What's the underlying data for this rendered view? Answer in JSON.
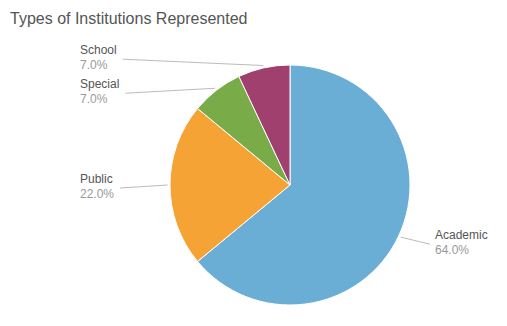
{
  "chart_data": {
    "type": "pie",
    "title": "Types of Institutions Represented",
    "categories": [
      "Academic",
      "Public",
      "Special",
      "School"
    ],
    "values": [
      64.0,
      22.0,
      7.0,
      7.0
    ],
    "value_labels": [
      "64.0%",
      "22.0%",
      "7.0%",
      "7.0%"
    ],
    "colors": [
      "#6aaed6",
      "#f5a335",
      "#7aab49",
      "#a0406f"
    ],
    "data_labels": true
  }
}
